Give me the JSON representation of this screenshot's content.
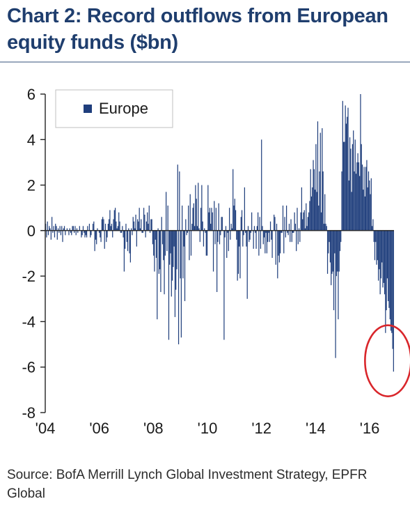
{
  "title": "Chart 2: Record outflows from European equity funds ($bn)",
  "source": "Source: BofA Merrill Lynch Global Investment Strategy, EPFR Global",
  "colors": {
    "bar": "#1f3e7c",
    "axis": "#222222",
    "highlight_circle": "#d9262b",
    "title": "#1f3e6e"
  },
  "chart_data": {
    "type": "bar",
    "title": "Chart 2: Record outflows from European equity funds ($bn)",
    "xlabel": "",
    "ylabel": "",
    "ylim": [
      -8,
      6
    ],
    "yticks": [
      6,
      4,
      2,
      0,
      -2,
      -4,
      -6,
      -8
    ],
    "ytick_labels": [
      "6",
      "4",
      "2",
      "0",
      "-2",
      "-4",
      "-6",
      "-8"
    ],
    "xlim": [
      2004,
      2016.9
    ],
    "xticks": [
      2004,
      2006,
      2008,
      2010,
      2012,
      2014,
      2016
    ],
    "xtick_labels": [
      "'04",
      "'06",
      "'08",
      "'10",
      "'12",
      "'14",
      "'16"
    ],
    "legend": {
      "position": "top-left",
      "entries": [
        "Europe"
      ]
    },
    "grid": false,
    "annotations": [
      {
        "type": "circle",
        "note": "highlights record outflows",
        "x": 2016.6,
        "y": -5.6
      }
    ],
    "series": [
      {
        "name": "Europe",
        "frequency": "weekly",
        "values": [
          0.3,
          -0.3,
          0.4,
          -0.2,
          0.2,
          0.1,
          -0.4,
          0.6,
          -0.1,
          0.2,
          -0.3,
          0.3,
          0.2,
          -0.4,
          0.1,
          -0.1,
          0.2,
          -0.2,
          0.2,
          -0.5,
          0.1,
          0.2,
          -0.2,
          0.0,
          0.1,
          0.0,
          -0.2,
          0.1,
          -0.1,
          -0.2,
          0.2,
          0.2,
          -0.1,
          0.2,
          -0.2,
          0.1,
          -0.1,
          0.0,
          0.2,
          0.0,
          -0.3,
          -0.2,
          0.2,
          -0.1,
          -0.3,
          -0.2,
          -0.3,
          0.2,
          0.0,
          0.3,
          -0.3,
          -0.2,
          0.0,
          0.3,
          0.4,
          -0.9,
          -0.4,
          -0.6,
          0.1,
          0.0,
          -0.1,
          -0.3,
          -0.5,
          0.5,
          0.6,
          0.5,
          -0.8,
          0.3,
          -0.5,
          -0.3,
          0.3,
          0.5,
          0.9,
          0.2,
          0.3,
          -0.3,
          0.5,
          0.9,
          1.0,
          0.4,
          0.1,
          0.2,
          0.8,
          0.4,
          -0.1,
          -0.1,
          0.2,
          -0.3,
          -1.8,
          -0.8,
          0.3,
          -0.5,
          -0.9,
          0.1,
          -1.0,
          -1.4,
          0.1,
          -0.2,
          0.6,
          0.4,
          0.1,
          0.7,
          -0.7,
          0.5,
          0.4,
          1.0,
          0.1,
          0.5,
          -0.1,
          -0.1,
          1.0,
          0.7,
          -0.3,
          0.4,
          0.8,
          0.3,
          1.1,
          -0.1,
          0.5,
          0.5,
          -0.6,
          -1.1,
          -1.8,
          -0.4,
          -1.2,
          -3.9,
          0.1,
          -1.9,
          -1.7,
          -2.7,
          0.6,
          -0.6,
          -1.3,
          -2.8,
          -1.1,
          1.7,
          -0.9,
          1.1,
          -4.8,
          -1.5,
          -1.0,
          -2.9,
          -2.2,
          -1.6,
          -0.7,
          -3.8,
          -2.6,
          -1.7,
          2.9,
          -5.0,
          2.6,
          -2.1,
          -4.7,
          1.1,
          -2.1,
          -0.7,
          -3.1,
          0.5,
          -0.2,
          -0.1,
          1.1,
          -1.3,
          1.6,
          -1.1,
          0.3,
          1.0,
          1.2,
          0.2,
          2.0,
          1.4,
          0.2,
          2.1,
          0.1,
          -0.5,
          1.0,
          2.0,
          0.4,
          -0.7,
          0.1,
          -0.1,
          -1.1,
          -1.1,
          2.0,
          0.8,
          1.0,
          0.3,
          1.0,
          0.8,
          -1.8,
          1.3,
          -0.6,
          1.0,
          -2.7,
          -0.5,
          1.2,
          -0.6,
          -0.2,
          0.6,
          0.6,
          0.0,
          -4.8,
          -0.3,
          0.2,
          -1.2,
          -0.1,
          -0.9,
          1.0,
          -0.4,
          0.3,
          0.1,
          2.7,
          1.1,
          1.4,
          0.9,
          -0.4,
          -2.2,
          -1.9,
          -0.7,
          -2.1,
          0.6,
          0.9,
          -0.7,
          -0.2,
          1.9,
          -0.1,
          -0.7,
          -3.0,
          0.2,
          -0.5,
          -0.4,
          -0.1,
          0.8,
          0.0,
          -0.8,
          0.2,
          -0.1,
          -0.8,
          0.2,
          0.8,
          -1.1,
          0.6,
          -0.8,
          4.0,
          0.2,
          -0.6,
          -0.3,
          -1.0,
          -0.1,
          -1.0,
          -0.5,
          -0.1,
          -0.5,
          0.4,
          -0.4,
          -1.2,
          0.0,
          0.7,
          0.6,
          -1.5,
          0.3,
          -2.1,
          -1.1,
          -1.4,
          -1.0,
          -0.1,
          -0.1,
          1.1,
          -1.0,
          0.6,
          -0.3,
          1.1,
          -0.1,
          -0.2,
          0.3,
          -0.5,
          0.5,
          -0.5,
          -0.1,
          -0.1,
          0.8,
          0.3,
          -0.9,
          1.0,
          -0.6,
          0.1,
          -0.5,
          0.8,
          1.9,
          0.5,
          0.8,
          0.9,
          0.1,
          1.2,
          0.2,
          0.6,
          0.8,
          1.3,
          2.7,
          1.5,
          1.9,
          3.1,
          2.7,
          1.8,
          3.8,
          1.7,
          4.8,
          1.1,
          2.6,
          4.3,
          0.8,
          4.5,
          2.6,
          0.3,
          1.6,
          0.3,
          0.2,
          -1.9,
          -1.0,
          -0.5,
          -1.4,
          -2.4,
          -1.9,
          -1.8,
          -3.5,
          -1.0,
          -5.6,
          -2.0,
          -1.8,
          -3.9,
          -1.8,
          -0.9,
          -0.5,
          2.6,
          5.7,
          3.9,
          3.9,
          5.5,
          4.7,
          5.0,
          5.4,
          2.2,
          4.1,
          3.6,
          1.7,
          3.8,
          4.4,
          2.6,
          4.0,
          2.5,
          3.0,
          3.4,
          3.0,
          2.4,
          6.0,
          3.8,
          2.9,
          1.8,
          2.8,
          1.5,
          2.8,
          3.1,
          1.9,
          2.6,
          2.2,
          1.6,
          2.3,
          0.2,
          0.5,
          -0.5,
          -1.3,
          -0.5,
          -1.5,
          -1.3,
          -2.2,
          -1.7,
          -2.8,
          -2.1,
          -1.4,
          -2.5,
          -2.3,
          -2.8,
          -4.5,
          -3.5,
          -2.1,
          -3.1,
          -3.4,
          -3.9,
          -4.4,
          -4.5,
          -5.2,
          -6.2
        ]
      }
    ]
  }
}
